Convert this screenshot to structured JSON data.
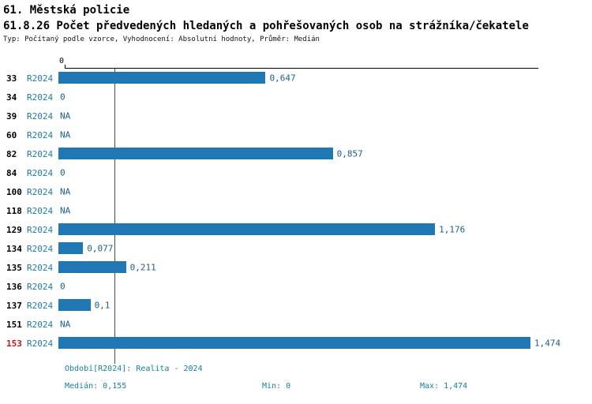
{
  "title": "61. Městská policie",
  "subtitle": "61.8.26 Počet předvedených hledaných a pohřešovaných osob na strážníka/čekatele",
  "meta": "Typ: Počítaný podle vzorce, Vyhodnocení: Absolutní hodnoty, Průměr: Medián",
  "axis_zero_label": "0",
  "chart_data": {
    "type": "bar",
    "orientation": "horizontal",
    "series_label": "R2024",
    "categories": [
      "33",
      "34",
      "39",
      "60",
      "82",
      "84",
      "100",
      "118",
      "129",
      "134",
      "135",
      "136",
      "137",
      "151",
      "153"
    ],
    "values": [
      0.647,
      0,
      null,
      null,
      0.857,
      0,
      null,
      null,
      1.176,
      0.077,
      0.211,
      0,
      0.1,
      null,
      1.474
    ],
    "value_labels": [
      "0,647",
      "0",
      "NA",
      "NA",
      "0,857",
      "0",
      "NA",
      "NA",
      "1,176",
      "0,077",
      "0,211",
      "0",
      "0,1",
      "NA",
      "1,474"
    ],
    "xlim": [
      0,
      1.474
    ],
    "median": 0.155,
    "highlight_category": "153",
    "bar_color": "#1f77b4",
    "grid": "single median reference line",
    "legend": "none",
    "title": "61.8.26 Počet předvedených hledaných a pohřešovaných osob na strážníka/čekatele"
  },
  "footer": {
    "period": "Období[R2024]: Realita - 2024",
    "median": "Medián: 0,155",
    "min": "Min: 0",
    "max": "Max: 1,474"
  }
}
